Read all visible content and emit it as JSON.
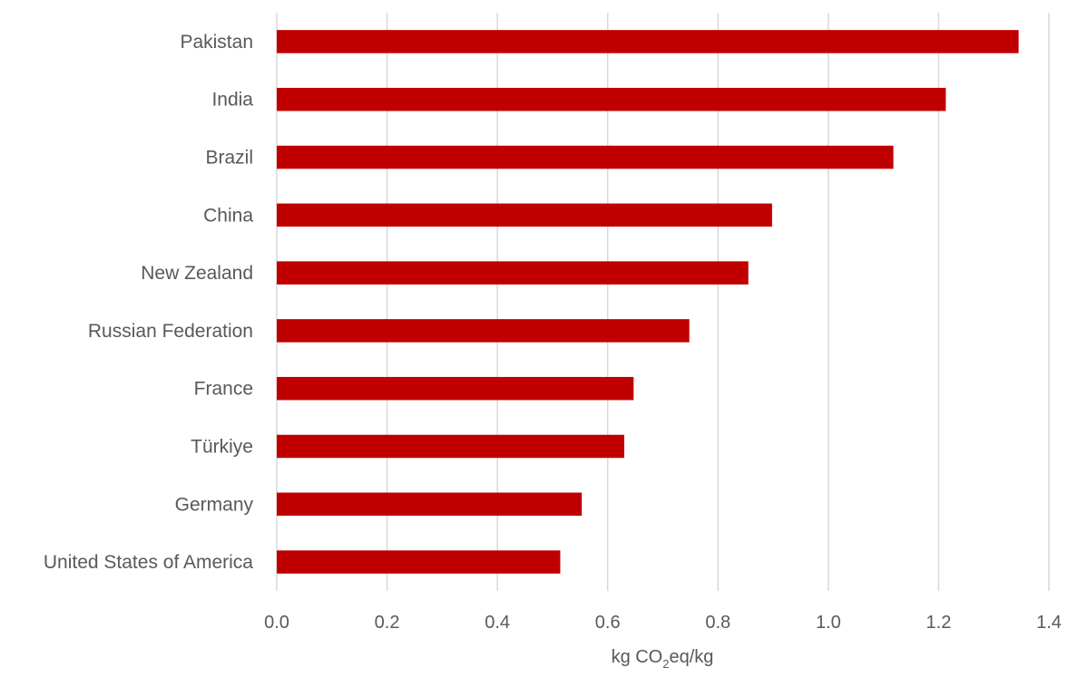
{
  "chart_data": {
    "type": "bar",
    "orientation": "horizontal",
    "categories": [
      "Pakistan",
      "India",
      "Brazil",
      "China",
      "New Zealand",
      "Russian Federation",
      "France",
      "Türkiye",
      "Germany",
      "United States of America"
    ],
    "series": [
      {
        "values": [
          1.345,
          1.213,
          1.118,
          0.898,
          0.855,
          0.748,
          0.647,
          0.63,
          0.553,
          0.514
        ],
        "color": "#C00000"
      }
    ],
    "xlim": [
      0,
      1.4
    ],
    "x_ticks": [
      "0.0",
      "0.2",
      "0.4",
      "0.6",
      "0.8",
      "1.0",
      "1.2",
      "1.4"
    ],
    "xlabel": {
      "prefix": "kg CO",
      "subscript": "2",
      "suffix": "eq/kg"
    },
    "title": "",
    "grid": "vertical",
    "gridline_color": "#D9D9D9",
    "legend": "none"
  }
}
